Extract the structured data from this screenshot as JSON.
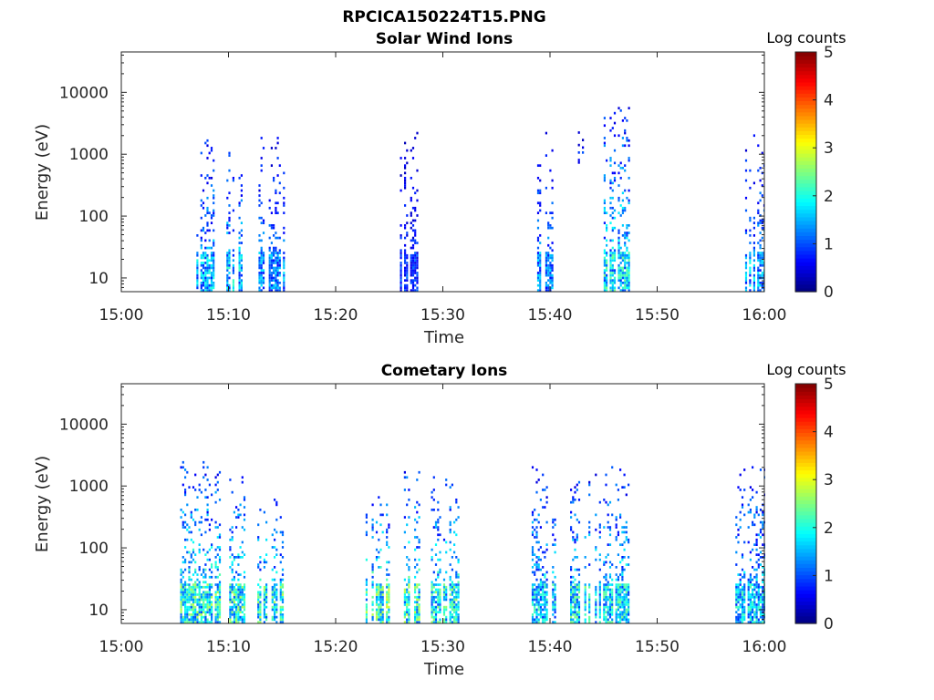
{
  "figure": {
    "filename": "RPCICA150224T15.PNG"
  },
  "chart_data": [
    {
      "type": "heatmap",
      "title": "Solar Wind Ions",
      "xlabel": "Time",
      "ylabel": "Energy (eV)",
      "x_ticks": [
        "15:00",
        "15:10",
        "15:20",
        "15:30",
        "15:40",
        "15:50",
        "16:00"
      ],
      "x_range_minutes": [
        0,
        60
      ],
      "y_scale": "log",
      "y_ticks": [
        "10",
        "100",
        "1000",
        "10000"
      ],
      "y_range": [
        6,
        45000
      ],
      "colorbar": {
        "label": "Log counts",
        "range": [
          0,
          5
        ],
        "ticks": [
          "0",
          "1",
          "2",
          "3",
          "4",
          "5"
        ],
        "colormap": "jet"
      },
      "bursts": [
        {
          "start_min": 7.0,
          "end_min": 8.6,
          "e_min": 6,
          "e_max": 2000,
          "max_log_counts": 2.1
        },
        {
          "start_min": 9.8,
          "end_min": 11.3,
          "e_min": 6,
          "e_max": 1400,
          "max_log_counts": 2.2
        },
        {
          "start_min": 12.8,
          "end_min": 15.2,
          "e_min": 6,
          "e_max": 1800,
          "max_log_counts": 1.8
        },
        {
          "start_min": 26.0,
          "end_min": 27.6,
          "e_min": 6,
          "e_max": 2200,
          "max_log_counts": 1.2
        },
        {
          "start_min": 30.3,
          "end_min": 30.6,
          "e_min": 1800,
          "e_max": 2500,
          "max_log_counts": 1.0
        },
        {
          "start_min": 38.8,
          "end_min": 40.2,
          "e_min": 6,
          "e_max": 2200,
          "max_log_counts": 1.8
        },
        {
          "start_min": 42.6,
          "end_min": 43.0,
          "e_min": 700,
          "e_max": 2200,
          "max_log_counts": 1.3
        },
        {
          "start_min": 45.0,
          "end_min": 47.4,
          "e_min": 6,
          "e_max": 6000,
          "max_log_counts": 2.5
        },
        {
          "start_min": 58.2,
          "end_min": 60.0,
          "e_min": 6,
          "e_max": 2300,
          "max_log_counts": 2.0
        }
      ]
    },
    {
      "type": "heatmap",
      "title": "Cometary Ions",
      "xlabel": "Time",
      "ylabel": "Energy (eV)",
      "x_ticks": [
        "15:00",
        "15:10",
        "15:20",
        "15:30",
        "15:40",
        "15:50",
        "16:00"
      ],
      "x_range_minutes": [
        0,
        60
      ],
      "y_scale": "log",
      "y_ticks": [
        "10",
        "100",
        "1000",
        "10000"
      ],
      "y_range": [
        6,
        45000
      ],
      "colorbar": {
        "label": "Log counts",
        "range": [
          0,
          5
        ],
        "ticks": [
          "0",
          "1",
          "2",
          "3",
          "4",
          "5"
        ],
        "colormap": "jet"
      },
      "bursts": [
        {
          "start_min": 5.3,
          "end_min": 9.2,
          "e_min": 6,
          "e_max": 2400,
          "max_log_counts": 2.8
        },
        {
          "start_min": 9.5,
          "end_min": 11.4,
          "e_min": 6,
          "e_max": 1500,
          "max_log_counts": 2.8
        },
        {
          "start_min": 12.5,
          "end_min": 15.0,
          "e_min": 6,
          "e_max": 600,
          "max_log_counts": 2.8
        },
        {
          "start_min": 22.6,
          "end_min": 24.9,
          "e_min": 6,
          "e_max": 800,
          "max_log_counts": 3.0
        },
        {
          "start_min": 25.8,
          "end_min": 27.8,
          "e_min": 6,
          "e_max": 1800,
          "max_log_counts": 2.9
        },
        {
          "start_min": 28.7,
          "end_min": 31.4,
          "e_min": 6,
          "e_max": 1600,
          "max_log_counts": 2.7
        },
        {
          "start_min": 38.1,
          "end_min": 40.4,
          "e_min": 6,
          "e_max": 2200,
          "max_log_counts": 2.4
        },
        {
          "start_min": 41.3,
          "end_min": 43.6,
          "e_min": 6,
          "e_max": 1400,
          "max_log_counts": 2.6
        },
        {
          "start_min": 44.0,
          "end_min": 47.4,
          "e_min": 6,
          "e_max": 2200,
          "max_log_counts": 2.5
        },
        {
          "start_min": 57.1,
          "end_min": 60.0,
          "e_min": 6,
          "e_max": 2200,
          "max_log_counts": 2.3
        }
      ]
    }
  ]
}
